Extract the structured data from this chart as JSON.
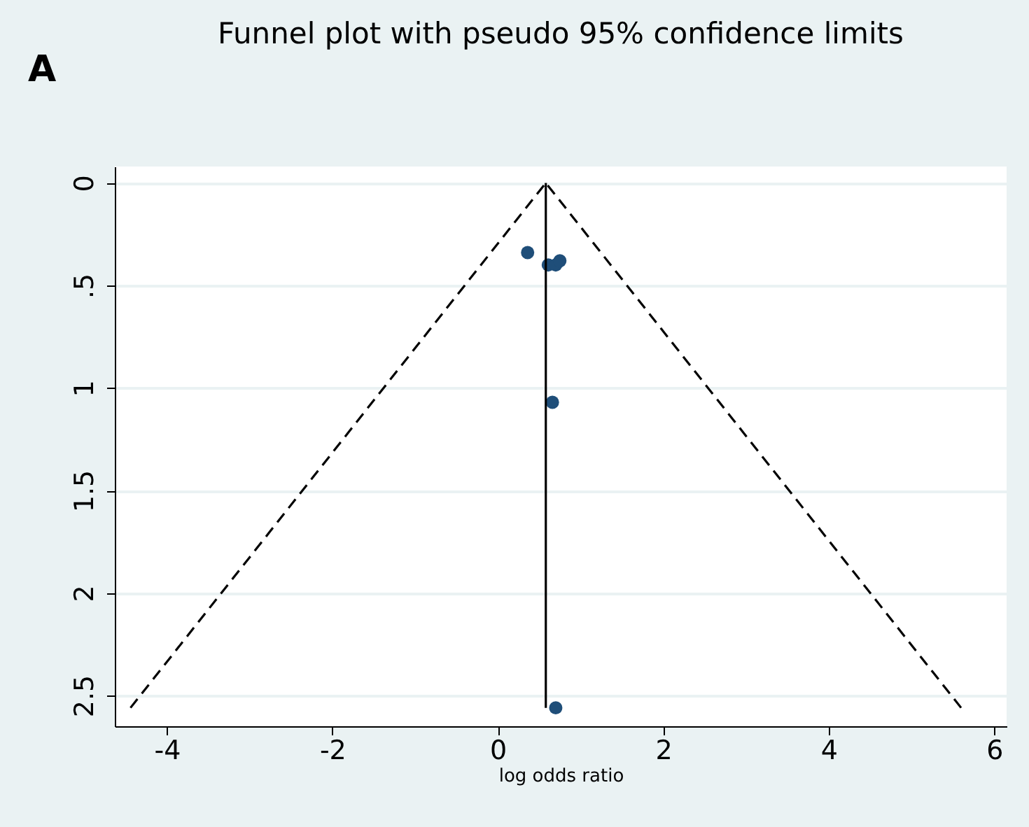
{
  "chart_data": {
    "type": "scatter",
    "title": "Funnel plot with pseudo 95% confidence limits",
    "xlabel": "log odds ratio",
    "annotations": [
      "A"
    ],
    "series": [
      {
        "type": "scatter",
        "color": "#1f4e79",
        "marker": "circle",
        "x": [
          0.36,
          0.61,
          0.7,
          0.75,
          0.66,
          0.7
        ],
        "values": [
          0.34,
          0.4,
          0.4,
          0.38,
          1.07,
          2.56
        ]
      },
      {
        "type": "line",
        "color": "#000000",
        "line_style": "solid",
        "x": [
          0.58,
          0.58
        ],
        "values": [
          0,
          2.56
        ]
      },
      {
        "type": "line",
        "color": "#000000",
        "line_style": "dashed",
        "x": [
          0.58,
          -4.44
        ],
        "values": [
          0,
          2.56
        ]
      },
      {
        "type": "line",
        "color": "#000000",
        "line_style": "dashed",
        "x": [
          0.58,
          5.6
        ],
        "values": [
          0,
          2.56
        ]
      }
    ],
    "xlim": [
      -4.63,
      6.15
    ],
    "xticks": [
      -4,
      -2,
      0,
      2,
      4,
      6
    ],
    "ylim": [
      2.65,
      -0.08
    ],
    "yticks": [
      0,
      {
        "value": 0.5,
        "label": ".5"
      },
      1,
      1.5,
      2,
      2.5
    ],
    "grid": "y",
    "legend": false
  }
}
